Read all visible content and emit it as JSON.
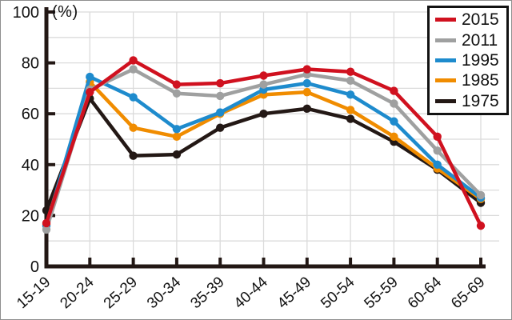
{
  "chart_data": {
    "type": "line",
    "title": "",
    "unit_label": "(%)",
    "xlabel": "",
    "ylabel": "(%)",
    "ylim": [
      0,
      100
    ],
    "ytick_step": 20,
    "grid_step": 10,
    "grid": true,
    "legend_position": "top-right",
    "axis_color": "#231815",
    "grid_color": "#dbdbdb",
    "label_color": "#111111",
    "categories": [
      "15-19",
      "20-24",
      "25-29",
      "30-34",
      "35-39",
      "40-44",
      "45-49",
      "50-54",
      "55-59",
      "60-64",
      "65-69"
    ],
    "ytick_labels": [
      "0",
      "20",
      "40",
      "60",
      "80",
      "100"
    ],
    "series": [
      {
        "name": "2015",
        "color": "#d0111f",
        "values": [
          17,
          68.5,
          81,
          71.5,
          72,
          75,
          77.5,
          76.5,
          69,
          51,
          16
        ]
      },
      {
        "name": "2011",
        "color": "#9fa0a0",
        "values": [
          14.5,
          69.5,
          77.5,
          68,
          67,
          71.5,
          75.5,
          73,
          64,
          45.5,
          28
        ]
      },
      {
        "name": "1995",
        "color": "#1e8bcd",
        "values": [
          16,
          74.5,
          66.5,
          54,
          60.5,
          69.5,
          72,
          67.5,
          57,
          40,
          27
        ]
      },
      {
        "name": "1985",
        "color": "#f08c00",
        "values": [
          16.5,
          72.5,
          54.5,
          51,
          60,
          67.5,
          68.5,
          61.5,
          51,
          38.5,
          26.5
        ]
      },
      {
        "name": "1975",
        "color": "#231815",
        "values": [
          22,
          66,
          43.5,
          44,
          54.5,
          60,
          62,
          58,
          49,
          38,
          25
        ]
      }
    ]
  }
}
